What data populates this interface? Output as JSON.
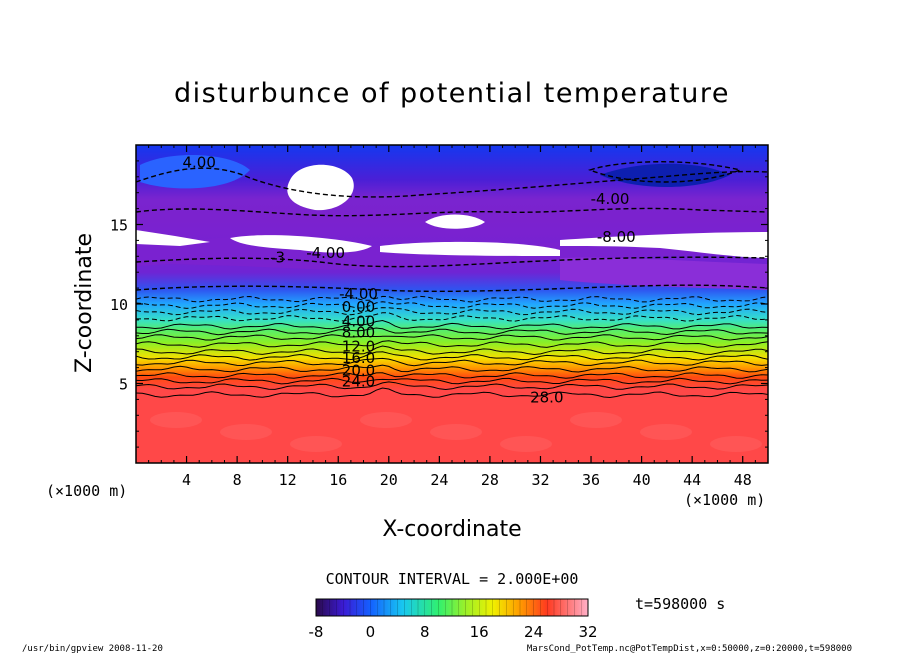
{
  "chart_data": {
    "type": "heatmap",
    "title": "disturbunce of potential temperature",
    "xlabel": "X-coordinate",
    "ylabel": "Z-coordinate",
    "x_unit": "(×1000 m)",
    "xlim": [
      0,
      50
    ],
    "ylim": [
      0,
      20
    ],
    "x_ticks": [
      4,
      8,
      12,
      16,
      20,
      24,
      28,
      32,
      36,
      40,
      44,
      48
    ],
    "y_ticks": [
      5,
      10,
      15
    ],
    "contour_interval_label": "CONTOUR INTERVAL = 2.000E+00",
    "colorbar": {
      "min": -8,
      "max": 32,
      "ticks": [
        -8,
        0,
        8,
        16,
        24,
        32
      ]
    },
    "contour_labels": [
      {
        "text": "4.00",
        "x": 5,
        "z": 18.6
      },
      {
        "text": "-4.00",
        "x": 37.5,
        "z": 16.3
      },
      {
        "text": "-8.00",
        "x": 38,
        "z": 13.9
      },
      {
        "text": "-4.00",
        "x": 15,
        "z": 12.9
      },
      {
        "text": "-3",
        "x": 11.2,
        "z": 12.6
      },
      {
        "text": "-4.00",
        "x": 17.6,
        "z": 10.3
      },
      {
        "text": "0.00",
        "x": 17.6,
        "z": 9.5
      },
      {
        "text": "4.00",
        "x": 17.6,
        "z": 8.6
      },
      {
        "text": "8.00",
        "x": 17.6,
        "z": 7.9
      },
      {
        "text": "12.0",
        "x": 17.6,
        "z": 7.0
      },
      {
        "text": "16.0",
        "x": 17.6,
        "z": 6.3
      },
      {
        "text": "20.0",
        "x": 17.6,
        "z": 5.5
      },
      {
        "text": "24.0",
        "x": 17.6,
        "z": 4.8
      },
      {
        "text": "28.0",
        "x": 32.5,
        "z": 3.8
      }
    ],
    "time_label": "t=598000 s",
    "grid": false
  },
  "footer": {
    "left": "/usr/bin/gpview   2008-11-20",
    "right": "MarsCond_PotTemp.nc@PotTempDist,x=0:50000,z=0:20000,t=598000"
  },
  "colors": {
    "bottom_fill": "#ff4848",
    "purple_mid": "#7a1fcf",
    "blue_top": "#1f4cf2",
    "line": "#000000"
  }
}
